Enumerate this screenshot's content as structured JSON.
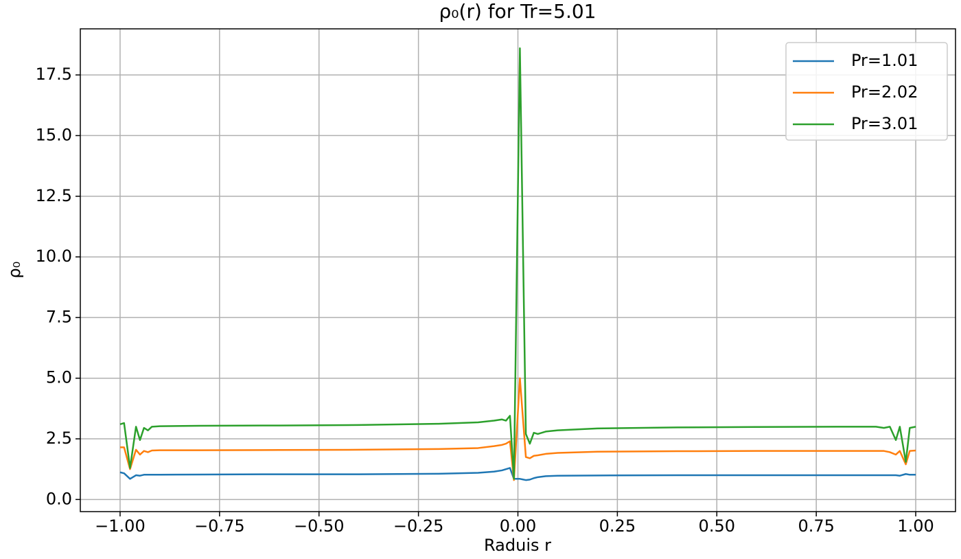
{
  "chart_data": {
    "type": "line",
    "title": "ρ₀(r) for Tr=5.01",
    "x_label": "Raduis r",
    "y_label": "ρ₀",
    "x": [
      -1,
      -0.99,
      -0.975,
      -0.96,
      -0.95,
      -0.94,
      -0.93,
      -0.92,
      -0.9,
      -0.8,
      -0.6,
      -0.4,
      -0.2,
      -0.1,
      -0.06,
      -0.04,
      -0.03,
      -0.02,
      -0.01,
      0.005,
      0.02,
      0.03,
      0.04,
      0.05,
      0.07,
      0.1,
      0.2,
      0.4,
      0.6,
      0.8,
      0.9,
      0.92,
      0.935,
      0.95,
      0.96,
      0.975,
      0.985,
      1.0
    ],
    "series": [
      {
        "name": "Pr=1.01",
        "color": "#1f77b4",
        "values": [
          1.12,
          1.08,
          0.85,
          1.0,
          0.98,
          1.02,
          1.02,
          1.02,
          1.02,
          1.03,
          1.04,
          1.04,
          1.06,
          1.1,
          1.15,
          1.2,
          1.25,
          1.3,
          0.85,
          0.85,
          0.8,
          0.82,
          0.88,
          0.92,
          0.96,
          0.98,
          0.99,
          1.0,
          1.0,
          1.0,
          1.0,
          1.0,
          1.0,
          1.0,
          0.98,
          1.05,
          1.02,
          1.02
        ]
      },
      {
        "name": "Pr=2.02",
        "color": "#ff7f0e",
        "values": [
          2.15,
          2.15,
          1.25,
          2.05,
          1.85,
          2.0,
          1.95,
          2.02,
          2.03,
          2.03,
          2.04,
          2.05,
          2.08,
          2.12,
          2.2,
          2.25,
          2.3,
          2.4,
          0.8,
          5.0,
          1.75,
          1.7,
          1.8,
          1.82,
          1.88,
          1.92,
          1.97,
          1.99,
          2.0,
          2.0,
          2.0,
          2.0,
          1.95,
          1.85,
          2.0,
          1.45,
          2.0,
          2.02
        ]
      },
      {
        "name": "Pr=3.01",
        "color": "#2ca02c",
        "values": [
          3.1,
          3.15,
          1.3,
          3.0,
          2.45,
          2.95,
          2.85,
          3.0,
          3.02,
          3.04,
          3.05,
          3.07,
          3.12,
          3.18,
          3.25,
          3.3,
          3.25,
          3.45,
          0.85,
          18.6,
          2.7,
          2.3,
          2.75,
          2.7,
          2.8,
          2.85,
          2.93,
          2.97,
          2.99,
          3.0,
          3.0,
          2.95,
          3.0,
          2.45,
          3.0,
          1.55,
          2.95,
          3.0
        ]
      }
    ],
    "xlim": [
      -1.1,
      1.1
    ],
    "ylim": [
      -0.5,
      19.4
    ],
    "xticks": [
      {
        "value": -1,
        "label": "−1.00"
      },
      {
        "value": -0.75,
        "label": "−0.75"
      },
      {
        "value": -0.5,
        "label": "−0.50"
      },
      {
        "value": -0.25,
        "label": "−0.25"
      },
      {
        "value": 0,
        "label": "0.00"
      },
      {
        "value": 0.25,
        "label": "0.25"
      },
      {
        "value": 0.5,
        "label": "0.50"
      },
      {
        "value": 0.75,
        "label": "0.75"
      },
      {
        "value": 1,
        "label": "1.00"
      }
    ],
    "yticks": [
      {
        "value": 0,
        "label": "0.0"
      },
      2.5,
      {
        "value": 5,
        "label": "5.0"
      },
      7.5,
      {
        "value": 10,
        "label": "10.0"
      },
      12.5,
      {
        "value": 15,
        "label": "15.0"
      },
      17.5
    ],
    "grid": true,
    "legend": "upper right"
  }
}
